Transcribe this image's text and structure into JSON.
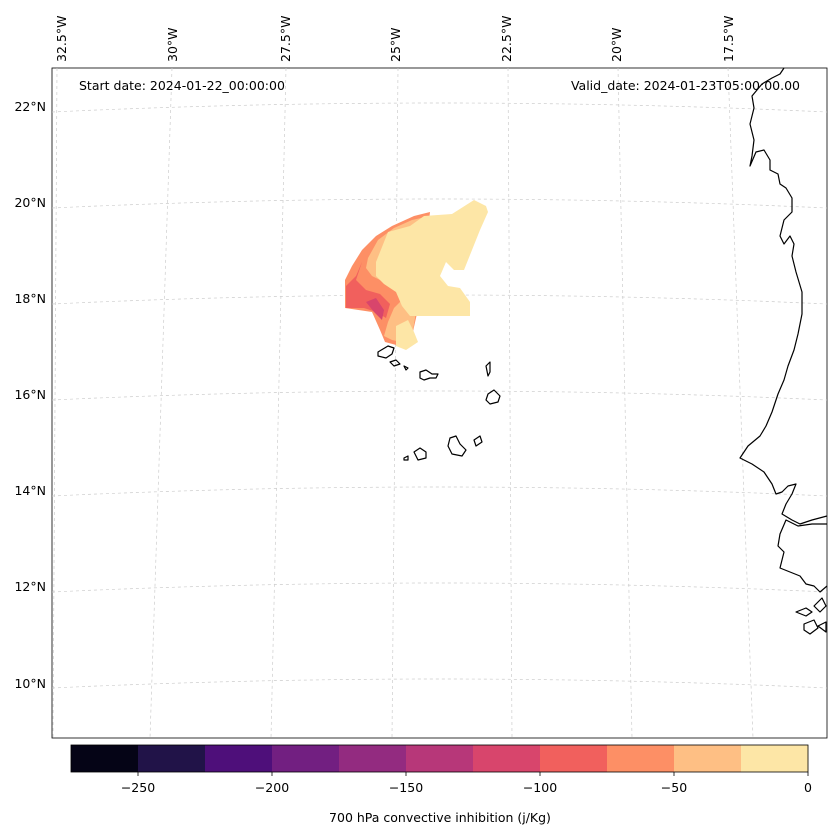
{
  "annotations": {
    "start_date": "Start date: 2024-01-22_00:00:00",
    "valid_date": "Valid_date: 2024-01-23T05:00:00.00"
  },
  "longitude_labels": [
    "32.5°W",
    "30°W",
    "27.5°W",
    "25°W",
    "22.5°W",
    "20°W",
    "17.5°W"
  ],
  "latitude_labels": [
    "22°N",
    "20°N",
    "18°N",
    "16°N",
    "14°N",
    "12°N",
    "10°N"
  ],
  "colorbar": {
    "label": "700 hPa convective inhibition (j/Kg)",
    "tick_labels": [
      "−250",
      "−200",
      "−150",
      "−100",
      "−50",
      "0"
    ],
    "range": [
      -275,
      0
    ],
    "levels": [
      -275,
      -250,
      -225,
      -200,
      -175,
      -150,
      -125,
      -100,
      -75,
      -50,
      -25,
      0
    ],
    "colors": [
      "#050416",
      "#211348",
      "#4e0f7a",
      "#721f81",
      "#932b80",
      "#b73779",
      "#d8456c",
      "#f1605d",
      "#fd8f65",
      "#febf84",
      "#fde6a6"
    ]
  },
  "chart_data": {
    "type": "filled-contour-map",
    "projection": "conic",
    "variable": "700 hPa convective inhibition",
    "units": "j/Kg",
    "extent": {
      "lon_min": -33.0,
      "lon_max": -16.5,
      "lat_min": 8.9,
      "lat_max": 22.8
    },
    "gridlines": {
      "lon": [
        -32.5,
        -30.0,
        -27.5,
        -25.0,
        -22.5,
        -20.0,
        -17.5
      ],
      "lat": [
        10,
        12,
        14,
        16,
        18,
        20,
        22
      ]
    },
    "regions": [
      {
        "level_range": [
          -50,
          -25
        ],
        "description": "bulk of CIN area, approx 17.5–19.9°N, 25.8–21.7°W"
      },
      {
        "level_range": [
          -75,
          -50
        ],
        "description": "western edge, approx 17.0–19.3°N near 26°W"
      },
      {
        "level_range": [
          -100,
          -75
        ],
        "description": "western fringe, approx 17.7–19.0°N near 26.5°W"
      },
      {
        "level_range": [
          -125,
          -100
        ],
        "description": "small core, approx 17.4–17.9°N near 25.6°W"
      }
    ],
    "features": [
      "Cape Verde islands",
      "West African coastline"
    ]
  }
}
